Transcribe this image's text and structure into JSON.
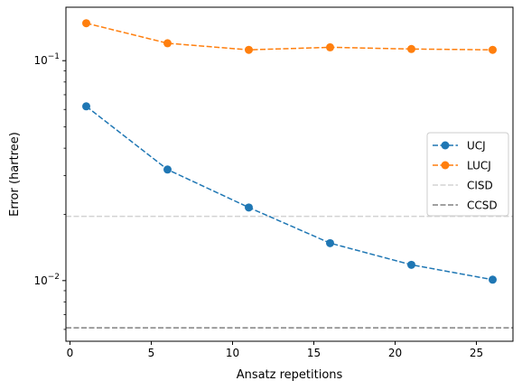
{
  "chart_data": {
    "type": "line",
    "title": "",
    "xlabel": "Ansatz repetitions",
    "ylabel": "Error (hartree)",
    "yscale": "log",
    "xlim": [
      -0.25,
      27.25
    ],
    "ylim": [
      0.0053,
      0.175
    ],
    "x": [
      1,
      6,
      11,
      16,
      21,
      26
    ],
    "x_ticks": [
      0,
      5,
      10,
      15,
      20,
      25
    ],
    "x_tick_labels": [
      "0",
      "5",
      "10",
      "15",
      "20",
      "25"
    ],
    "y_major_ticks": [
      0.01,
      0.1
    ],
    "y_major_tick_labels": [
      "10^-2",
      "10^-1"
    ],
    "y_minor_ticks": [
      0.006,
      0.007,
      0.008,
      0.009,
      0.02,
      0.03,
      0.04,
      0.05,
      0.06,
      0.07,
      0.08,
      0.09
    ],
    "series": [
      {
        "name": "UCJ",
        "color": "#1f77b4",
        "style": "dashed-marker",
        "values": [
          0.062,
          0.032,
          0.0215,
          0.0148,
          0.0118,
          0.0101
        ]
      },
      {
        "name": "LUCJ",
        "color": "#ff7f0e",
        "style": "dashed-marker",
        "values": [
          0.148,
          0.12,
          0.112,
          0.115,
          0.113,
          0.112
        ]
      }
    ],
    "reference_lines": [
      {
        "name": "CISD",
        "color": "#d3d3d3",
        "style": "dashed",
        "value": 0.0196
      },
      {
        "name": "CCSD",
        "color": "#808080",
        "style": "dashed",
        "value": 0.0061
      }
    ],
    "legend_position": "center-right",
    "grid": false
  }
}
